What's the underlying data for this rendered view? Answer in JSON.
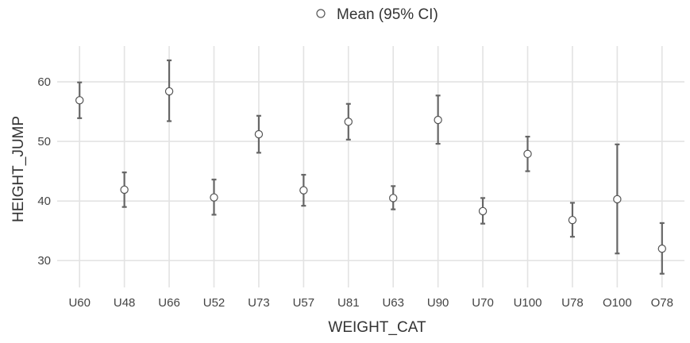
{
  "chart_data": {
    "type": "errorbar",
    "legend": {
      "label": "Mean (95% CI)",
      "placement": "top-center"
    },
    "xlabel": "WEIGHT_CAT",
    "ylabel": "HEIGHT_JUMP",
    "grid": true,
    "ylim": [
      25.5,
      66
    ],
    "yticks": [
      30,
      40,
      50,
      60
    ],
    "categories": [
      "U60",
      "U48",
      "U66",
      "U52",
      "U73",
      "U57",
      "U81",
      "U63",
      "U90",
      "U70",
      "U100",
      "U78",
      "O100",
      "O78"
    ],
    "series": [
      {
        "name": "Mean (95% CI)",
        "mean": [
          56.9,
          41.9,
          58.4,
          40.6,
          51.2,
          41.8,
          53.3,
          40.5,
          53.6,
          38.3,
          47.9,
          36.8,
          40.3,
          32.0
        ],
        "lower": [
          53.9,
          39.0,
          53.4,
          37.7,
          48.1,
          39.2,
          50.3,
          38.6,
          49.6,
          36.2,
          45.0,
          34.0,
          31.2,
          27.8
        ],
        "upper": [
          59.9,
          44.8,
          63.6,
          43.6,
          54.3,
          44.4,
          56.3,
          42.5,
          57.7,
          40.5,
          50.8,
          39.7,
          49.5,
          36.3
        ]
      }
    ],
    "colors": {
      "grid": "#e3e3e3",
      "errorbar": "#666666",
      "point_fill": "#ffffff",
      "point_stroke": "#555555"
    }
  }
}
